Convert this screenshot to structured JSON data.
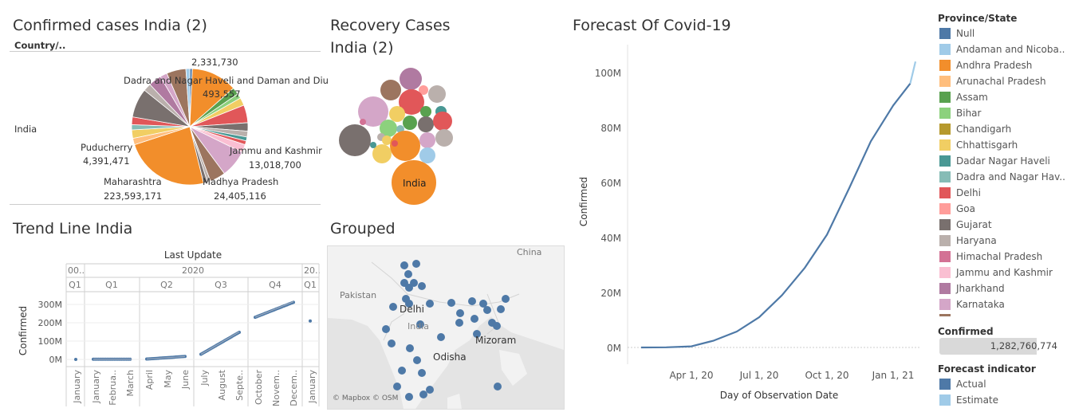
{
  "pie_panel": {
    "title": "Confirmed cases India (2)",
    "header": "Country/..",
    "row_label": "India",
    "labels": [
      {
        "name": "",
        "value": "2,331,730"
      },
      {
        "name": "Dadra and Nagar Haveli and Daman and Diu",
        "value": "493,557"
      },
      {
        "name": "Jammu and Kashmir",
        "value": "13,018,700"
      },
      {
        "name": "Madhya Pradesh",
        "value": "24,405,116"
      },
      {
        "name": "Maharashtra",
        "value": "223,593,171"
      },
      {
        "name": "Puducherry",
        "value": "4,391,471"
      }
    ]
  },
  "bubble_panel": {
    "title_line1": "Recovery Cases",
    "title_line2": "India (2)",
    "big_label": "India"
  },
  "trend_panel": {
    "title": "Trend Line India",
    "x_title": "Last Update",
    "year_labels": [
      "00..",
      "2020",
      "20.."
    ],
    "quarter_labels": [
      "Q1",
      "Q1",
      "Q2",
      "Q3",
      "Q4",
      "Q1"
    ],
    "month_labels": [
      "January",
      "January",
      "Februa..",
      "March",
      "April",
      "May",
      "June",
      "July",
      "August",
      "Septe..",
      "October",
      "Novem..",
      "Decem..",
      "January"
    ],
    "y_title": "Confirmed",
    "y_ticks": [
      "300M",
      "200M",
      "100M",
      "0M"
    ]
  },
  "map_panel": {
    "title": "Grouped",
    "labels": [
      "China",
      "Pakistan",
      "Delhi",
      "India",
      "Mizoram",
      "Odisha"
    ],
    "credit": "© Mapbox © OSM"
  },
  "forecast_panel": {
    "title": "Forecast Of Covid-19",
    "y_title": "Confirmed",
    "x_title": "Day of Observation Date",
    "y_ticks": [
      "100M",
      "80M",
      "60M",
      "40M",
      "20M",
      "0M"
    ],
    "x_ticks": [
      "Apr 1, 20",
      "Jul 1, 20",
      "Oct 1, 20",
      "Jan 1, 21"
    ]
  },
  "legend": {
    "title": "Province/State",
    "items": [
      {
        "label": "Null",
        "color": "#4e79a7"
      },
      {
        "label": "Andaman and Nicoba..",
        "color": "#a0cbe8"
      },
      {
        "label": "Andhra Pradesh",
        "color": "#f28e2b"
      },
      {
        "label": "Arunachal Pradesh",
        "color": "#ffbe7d"
      },
      {
        "label": "Assam",
        "color": "#59a14f"
      },
      {
        "label": "Bihar",
        "color": "#8cd17d"
      },
      {
        "label": "Chandigarh",
        "color": "#b6992d"
      },
      {
        "label": "Chhattisgarh",
        "color": "#f1ce63"
      },
      {
        "label": "Dadar Nagar Haveli",
        "color": "#499894"
      },
      {
        "label": "Dadra and Nagar Hav..",
        "color": "#86bcb6"
      },
      {
        "label": "Delhi",
        "color": "#e15759"
      },
      {
        "label": "Goa",
        "color": "#ff9d9a"
      },
      {
        "label": "Gujarat",
        "color": "#79706e"
      },
      {
        "label": "Haryana",
        "color": "#bab0ac"
      },
      {
        "label": "Himachal Pradesh",
        "color": "#d37295"
      },
      {
        "label": "Jammu and Kashmir",
        "color": "#fabfd2"
      },
      {
        "label": "Jharkhand",
        "color": "#b07aa1"
      },
      {
        "label": "Karnataka",
        "color": "#d4a6c8"
      }
    ],
    "confirmed_title": "Confirmed",
    "confirmed_value": "1,282,760,774",
    "forecast_title": "Forecast indicator",
    "forecast_items": [
      {
        "label": "Actual",
        "color": "#4e79a7"
      },
      {
        "label": "Estimate",
        "color": "#a0cbe8"
      }
    ]
  },
  "chart_data": [
    {
      "type": "pie",
      "title": "Confirmed cases India (2)",
      "categories": [
        "Maharashtra",
        "Madhya Pradesh",
        "Jammu and Kashmir",
        "Puducherry",
        "Dadra and Nagar Haveli and Daman and Diu",
        "(unlabeled)"
      ],
      "values": [
        223593171,
        24405116,
        13018700,
        4391471,
        493557,
        2331730
      ]
    },
    {
      "type": "line",
      "title": "Forecast Of Covid-19",
      "xlabel": "Day of Observation Date",
      "ylabel": "Confirmed",
      "ylim": [
        0,
        105000000
      ],
      "series": [
        {
          "name": "Actual",
          "x": [
            "2020-01-30",
            "2020-03-01",
            "2020-04-01",
            "2020-05-01",
            "2020-06-01",
            "2020-07-01",
            "2020-08-01",
            "2020-09-01",
            "2020-10-01",
            "2020-11-01",
            "2020-12-01",
            "2021-01-01",
            "2021-01-30"
          ],
          "values": [
            0,
            50000,
            400000,
            2500000,
            5800000,
            11000000,
            19000000,
            29000000,
            41000000,
            58000000,
            75000000,
            88000000,
            96000000
          ]
        },
        {
          "name": "Estimate",
          "x": [
            "2021-01-30",
            "2021-02-08"
          ],
          "values": [
            96000000,
            104000000
          ]
        }
      ]
    },
    {
      "type": "scatter",
      "title": "Trend Line India",
      "xlabel": "Last Update",
      "ylabel": "Confirmed",
      "ylim": [
        0,
        330000000
      ],
      "series": [
        {
          "name": "",
          "x": [
            "2020-01",
            "2020-02",
            "2020-03",
            "2020-04",
            "2020-05",
            "2020-06",
            "2020-07",
            "2020-08",
            "2020-09",
            "2020-10",
            "2020-11",
            "2020-12",
            "2021-01"
          ],
          "values": [
            0,
            0,
            1000000,
            5000000,
            10000000,
            25000000,
            40000000,
            90000000,
            150000000,
            230000000,
            270000000,
            310000000,
            210000000
          ]
        }
      ]
    }
  ]
}
